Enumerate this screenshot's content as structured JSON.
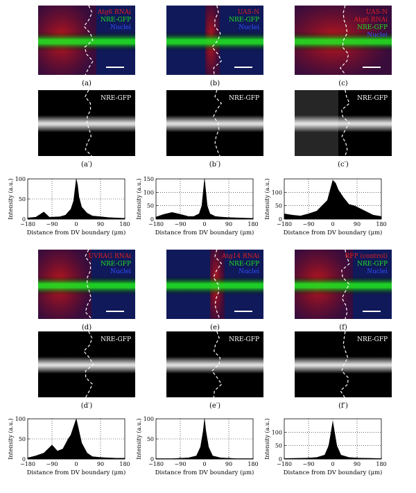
{
  "panels_color": [
    {
      "id": "a",
      "channels": [
        "Atg6 RNAi",
        "NRE-GFP",
        "Nuclei"
      ],
      "label": "(a)"
    },
    {
      "id": "b",
      "channels": [
        "UAS-N",
        "NRE-GFP",
        "Nuclei"
      ],
      "label": "(b)"
    },
    {
      "id": "c",
      "channels": [
        "UAS-N",
        "Atg6 RNAi",
        "NRE-GFP",
        "Nuclei"
      ],
      "label": "(c)"
    },
    {
      "id": "d",
      "channels": [
        "UVRAG RNAi",
        "NRE-GFP",
        "Nuclei"
      ],
      "label": "(d)"
    },
    {
      "id": "e",
      "channels": [
        "Atg14 RNAi",
        "NRE-GFP",
        "Nuclei"
      ],
      "label": "(e)"
    },
    {
      "id": "f",
      "channels": [
        "RFP (control)",
        "NRE-GFP",
        "Nuclei"
      ],
      "label": "(f)"
    }
  ],
  "panels_gray": [
    {
      "id": "a1",
      "text": "NRE-GFP",
      "label": "(a′)"
    },
    {
      "id": "b1",
      "text": "NRE-GFP",
      "label": "(b′)"
    },
    {
      "id": "c1",
      "text": "NRE-GFP",
      "label": "(c′)"
    },
    {
      "id": "d1",
      "text": "NRE-GFP",
      "label": "(d′)"
    },
    {
      "id": "e1",
      "text": "NRE-GFP",
      "label": "(e′)"
    },
    {
      "id": "f1",
      "text": "NRE-GFP",
      "label": "(f′)"
    }
  ],
  "colors": {
    "red": "#e02020",
    "green": "#20e020",
    "blue": "#3050ff",
    "white": "#ffffff"
  },
  "chart_data": [
    {
      "type": "area",
      "ylabel": "Intensity (a.u.)",
      "xlabel": "Distance from DV boundary (μm)",
      "xlim": [
        -180,
        180
      ],
      "ylim": [
        0,
        100
      ],
      "xticks": [
        "−180",
        "−90",
        "0",
        "90",
        "180"
      ],
      "yticks": [
        "0",
        "50",
        "100"
      ],
      "x": [
        -180,
        -150,
        -120,
        -100,
        -90,
        -60,
        -40,
        -20,
        -10,
        0,
        5,
        10,
        20,
        40,
        60,
        90,
        120,
        150,
        180
      ],
      "y": [
        3,
        5,
        18,
        5,
        5,
        6,
        10,
        25,
        45,
        100,
        85,
        55,
        30,
        15,
        8,
        6,
        4,
        3,
        2
      ]
    },
    {
      "type": "area",
      "ylabel": "Intensity (a.u.)",
      "xlabel": "Distance from DV boundary (μm)",
      "xlim": [
        -180,
        180
      ],
      "ylim": [
        0,
        150
      ],
      "xticks": [
        "−180",
        "−90",
        "0",
        "90",
        "180"
      ],
      "yticks": [
        "0",
        "50",
        "100",
        "150"
      ],
      "x": [
        -180,
        -150,
        -120,
        -90,
        -60,
        -40,
        -20,
        -10,
        0,
        10,
        20,
        40,
        60,
        90,
        120,
        150,
        180
      ],
      "y": [
        8,
        18,
        25,
        18,
        10,
        10,
        20,
        50,
        150,
        50,
        20,
        10,
        8,
        6,
        5,
        4,
        3
      ]
    },
    {
      "type": "area",
      "ylabel": "Intensity (a.u.)",
      "xlabel": "Distance from DV boundary (μm)",
      "xlim": [
        -180,
        180
      ],
      "ylim": [
        0,
        150
      ],
      "xticks": [
        "−180",
        "−90",
        "0",
        "90",
        "180"
      ],
      "yticks": [
        "0",
        "50",
        "100"
      ],
      "x": [
        -180,
        -150,
        -120,
        -90,
        -60,
        -40,
        -20,
        0,
        10,
        20,
        40,
        60,
        80,
        100,
        120,
        150,
        180
      ],
      "y": [
        20,
        15,
        12,
        20,
        30,
        50,
        70,
        145,
        135,
        110,
        80,
        55,
        50,
        40,
        30,
        15,
        10
      ]
    },
    {
      "type": "area",
      "ylabel": "Intensity (a.u.)",
      "xlabel": "Distance from DV boundary (μm)",
      "xlim": [
        -180,
        180
      ],
      "ylim": [
        0,
        100
      ],
      "xticks": [
        "−180",
        "−90",
        "0",
        "90",
        "180"
      ],
      "yticks": [
        "0",
        "50",
        "100"
      ],
      "x": [
        -180,
        -150,
        -120,
        -90,
        -70,
        -50,
        -30,
        -20,
        -10,
        0,
        10,
        20,
        40,
        60,
        90,
        120,
        150,
        180
      ],
      "y": [
        3,
        8,
        15,
        35,
        20,
        25,
        50,
        60,
        80,
        105,
        70,
        40,
        15,
        6,
        4,
        3,
        2,
        2
      ]
    },
    {
      "type": "area",
      "ylabel": "Intensity (a.u.)",
      "xlabel": "Distance from DV boundary (μm)",
      "xlim": [
        -180,
        180
      ],
      "ylim": [
        0,
        100
      ],
      "xticks": [
        "−180",
        "−90",
        "0",
        "90",
        "180"
      ],
      "yticks": [
        "0",
        "50",
        "100"
      ],
      "x": [
        -180,
        -120,
        -90,
        -60,
        -30,
        -15,
        -5,
        0,
        5,
        15,
        30,
        60,
        90,
        120,
        180
      ],
      "y": [
        1,
        1,
        2,
        3,
        8,
        30,
        70,
        100,
        70,
        30,
        8,
        3,
        2,
        1,
        1
      ]
    },
    {
      "type": "area",
      "ylabel": "Intensity (a.u.)",
      "xlabel": "Distance from DV boundary (μm)",
      "xlim": [
        -180,
        180
      ],
      "ylim": [
        0,
        150
      ],
      "xticks": [
        "−180",
        "−90",
        "0",
        "90",
        "180"
      ],
      "yticks": [
        "0",
        "50",
        "100"
      ],
      "x": [
        -180,
        -120,
        -90,
        -60,
        -30,
        -15,
        -5,
        0,
        5,
        15,
        30,
        60,
        90,
        120,
        180
      ],
      "y": [
        2,
        3,
        4,
        6,
        15,
        50,
        110,
        140,
        110,
        50,
        15,
        6,
        4,
        3,
        2
      ]
    }
  ]
}
